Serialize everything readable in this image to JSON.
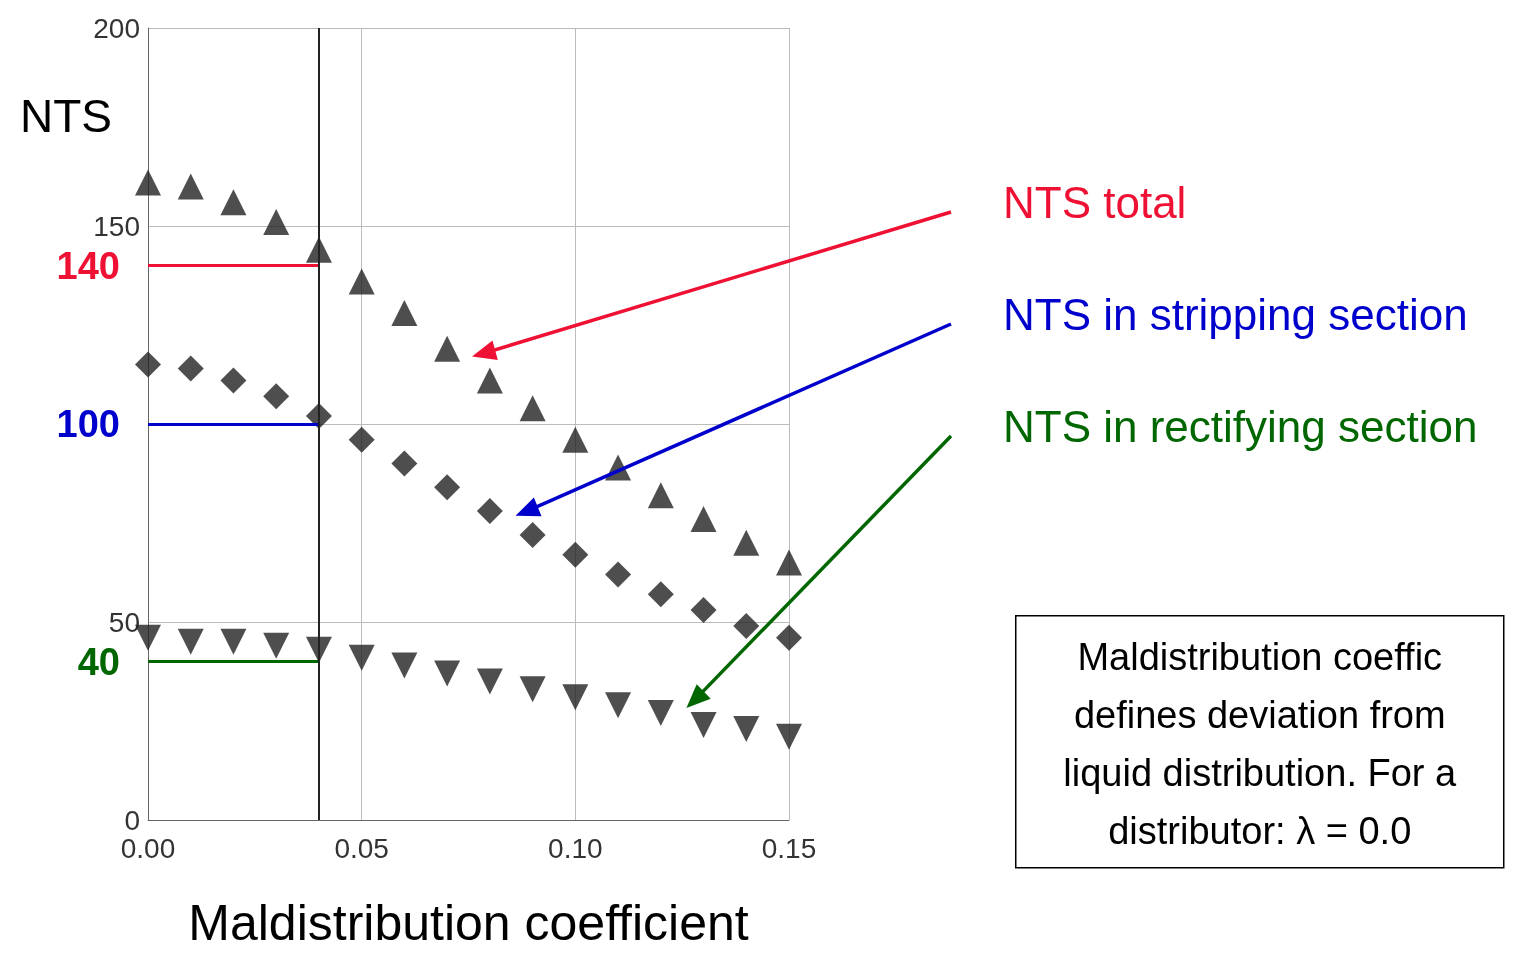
{
  "chart_data": {
    "type": "scatter",
    "xlabel": "Maldistribution coefficient",
    "ylabel": "NTS",
    "x": [
      0,
      0.01,
      0.02,
      0.03,
      0.04,
      0.05,
      0.06,
      0.07,
      0.08,
      0.09,
      0.1,
      0.11,
      0.12,
      0.13,
      0.14,
      0.15
    ],
    "xlim": [
      0,
      0.15
    ],
    "xticks": [
      {
        "value": 0,
        "label": "0.00"
      },
      {
        "value": 0.05,
        "label": "0.05"
      },
      {
        "value": 0.1,
        "label": "0.10"
      },
      {
        "value": 0.15,
        "label": "0.15"
      }
    ],
    "ylim": [
      0,
      200
    ],
    "yticks": [
      0,
      50,
      {
        "value": 100,
        "label": null
      },
      150,
      200
    ],
    "grid": true,
    "series": [
      {
        "color": "#222222",
        "marker": "triangle",
        "values": [
          161,
          160,
          156,
          151,
          144,
          136,
          128,
          119,
          111,
          104,
          96,
          89,
          82,
          76,
          70,
          65
        ]
      },
      {
        "color": "#222222",
        "marker": "diamond",
        "values": [
          115,
          114,
          111,
          107,
          102,
          96,
          90,
          84,
          78,
          72,
          67,
          62,
          57,
          53,
          49,
          46
        ]
      },
      {
        "color": "#222222",
        "marker": "triangle-down",
        "values": [
          46,
          45,
          45,
          44,
          43,
          41,
          39,
          37,
          35,
          33,
          31,
          29,
          27,
          24,
          23,
          21
        ]
      }
    ],
    "ref_lines": [
      {
        "axis": "y",
        "value": 140,
        "label": "140",
        "color": "#ee1133"
      },
      {
        "axis": "y",
        "value": 100,
        "label": "100",
        "color": "#0000cc"
      },
      {
        "axis": "y",
        "value": 40,
        "label": "40",
        "color": "#006600"
      },
      {
        "axis": "x",
        "value": 0.04,
        "label": null,
        "color": "#222222"
      }
    ],
    "annotations": [
      "NTS total",
      "NTS in stripping section",
      "NTS in rectifying section",
      "Maldistribution coeffic\ndefines deviation from\nliquid distribution. For a\ndistributor: λ = 0.0"
    ]
  }
}
